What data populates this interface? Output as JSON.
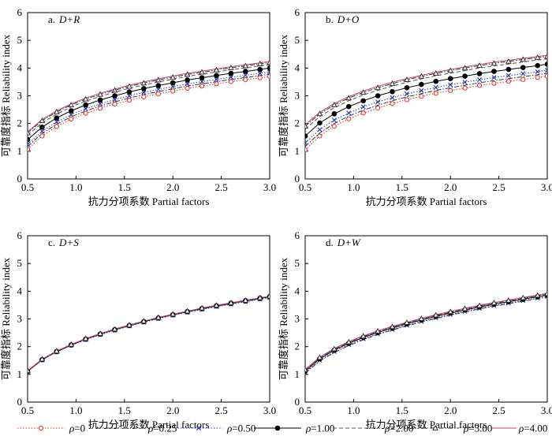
{
  "figure": {
    "legend": [
      {
        "series_id": "r0",
        "rho_symbol": "ρ",
        "label": "=0"
      },
      {
        "series_id": "r025",
        "rho_symbol": "ρ",
        "label": "=0.25"
      },
      {
        "series_id": "r050",
        "rho_symbol": "ρ",
        "label": "=0.50"
      },
      {
        "series_id": "r100",
        "rho_symbol": "ρ",
        "label": "=1.00"
      },
      {
        "series_id": "r200",
        "rho_symbol": "ρ",
        "label": "=2.00"
      },
      {
        "series_id": "r300",
        "rho_symbol": "ρ",
        "label": "=3.00"
      },
      {
        "series_id": "r400",
        "rho_symbol": "ρ",
        "label": "=4.00"
      }
    ],
    "series_styles": {
      "r0": {
        "color": "#e0302a",
        "marker": "circle-open",
        "dash": "dot"
      },
      "r025": {
        "color": "#333333",
        "marker": "none",
        "dash": "dashdot"
      },
      "r050": {
        "color": "#2a3aa8",
        "marker": "x",
        "dash": "dot"
      },
      "r100": {
        "color": "#000000",
        "marker": "circle-filled",
        "dash": "solid"
      },
      "r200": {
        "color": "#555555",
        "marker": "none",
        "dash": "dash"
      },
      "r300": {
        "color": "#333333",
        "marker": "triangle-open",
        "dash": "dashdot"
      },
      "r400": {
        "color": "#c0407a",
        "marker": "none",
        "dash": "solid"
      }
    }
  },
  "chart_data": [
    {
      "type": "line",
      "panel_letter": "a.",
      "panel_case": "D+R",
      "xlabel": "抗力分项系数 Partial factors",
      "ylabel": "可靠度指标 Reliability index",
      "xlim": [
        0.5,
        3.0
      ],
      "ylim": [
        0,
        6
      ],
      "xticks": [
        0.5,
        1.0,
        1.5,
        2.0,
        2.5,
        3.0
      ],
      "xtick_labels": [
        "0.5",
        "1.0",
        "1.5",
        "2.0",
        "2.5",
        "3.0"
      ],
      "yticks": [
        0,
        1,
        2,
        3,
        4,
        5,
        6
      ],
      "ytick_labels": [
        "0",
        "1",
        "2",
        "3",
        "4",
        "5",
        "6"
      ],
      "x": [
        0.5,
        0.65,
        0.8,
        0.95,
        1.1,
        1.25,
        1.4,
        1.55,
        1.7,
        1.85,
        2.0,
        2.15,
        2.3,
        2.45,
        2.6,
        2.75,
        2.9,
        3.0
      ],
      "series": [
        {
          "id": "r0",
          "name": "ρ=0",
          "values": [
            1.07,
            1.55,
            1.89,
            2.16,
            2.37,
            2.55,
            2.7,
            2.84,
            2.96,
            3.07,
            3.17,
            3.27,
            3.35,
            3.43,
            3.51,
            3.58,
            3.65,
            3.7
          ]
        },
        {
          "id": "r025",
          "name": "ρ=0.25",
          "values": [
            1.17,
            1.64,
            1.98,
            2.24,
            2.45,
            2.63,
            2.78,
            2.92,
            3.04,
            3.15,
            3.25,
            3.35,
            3.43,
            3.51,
            3.59,
            3.66,
            3.73,
            3.78
          ]
        },
        {
          "id": "r050",
          "name": "ρ=0.50",
          "values": [
            1.25,
            1.72,
            2.06,
            2.32,
            2.53,
            2.71,
            2.86,
            3.0,
            3.12,
            3.23,
            3.33,
            3.43,
            3.51,
            3.59,
            3.67,
            3.74,
            3.81,
            3.86
          ]
        },
        {
          "id": "r100",
          "name": "ρ=1.00",
          "values": [
            1.42,
            1.87,
            2.2,
            2.46,
            2.67,
            2.85,
            3.0,
            3.14,
            3.26,
            3.37,
            3.47,
            3.57,
            3.65,
            3.73,
            3.81,
            3.88,
            3.95,
            4.0
          ]
        },
        {
          "id": "r200",
          "name": "ρ=2.00",
          "values": [
            1.58,
            2.02,
            2.34,
            2.6,
            2.81,
            2.98,
            3.13,
            3.27,
            3.39,
            3.5,
            3.6,
            3.7,
            3.78,
            3.86,
            3.94,
            4.01,
            4.08,
            4.12
          ]
        },
        {
          "id": "r300",
          "name": "ρ=3.00",
          "values": [
            1.66,
            2.1,
            2.42,
            2.67,
            2.88,
            3.05,
            3.2,
            3.34,
            3.46,
            3.57,
            3.67,
            3.77,
            3.85,
            3.93,
            4.01,
            4.08,
            4.15,
            4.2
          ]
        },
        {
          "id": "r400",
          "name": "ρ=4.00",
          "values": [
            1.7,
            2.14,
            2.46,
            2.71,
            2.92,
            3.09,
            3.24,
            3.38,
            3.5,
            3.61,
            3.71,
            3.81,
            3.89,
            3.97,
            4.05,
            4.12,
            4.19,
            4.24
          ]
        }
      ]
    },
    {
      "type": "line",
      "panel_letter": "b.",
      "panel_case": "D+O",
      "xlabel": "抗力分项系数 Partial factors",
      "ylabel": "可靠度指标 Reliability index",
      "xlim": [
        0.5,
        3.0
      ],
      "ylim": [
        0,
        6
      ],
      "xticks": [
        0.5,
        1.0,
        1.5,
        2.0,
        2.5,
        3.0
      ],
      "xtick_labels": [
        "0.5",
        "1.0",
        "1.5",
        "2.0",
        "2.5",
        "3.0"
      ],
      "yticks": [
        0,
        1,
        2,
        3,
        4,
        5,
        6
      ],
      "ytick_labels": [
        "0",
        "1",
        "2",
        "3",
        "4",
        "5",
        "6"
      ],
      "x": [
        0.5,
        0.65,
        0.8,
        0.95,
        1.1,
        1.25,
        1.4,
        1.55,
        1.7,
        1.85,
        2.0,
        2.15,
        2.3,
        2.45,
        2.6,
        2.75,
        2.9,
        3.0
      ],
      "series": [
        {
          "id": "r0",
          "name": "ρ=0",
          "values": [
            1.05,
            1.55,
            1.9,
            2.17,
            2.38,
            2.56,
            2.72,
            2.86,
            2.98,
            3.09,
            3.19,
            3.28,
            3.37,
            3.45,
            3.52,
            3.59,
            3.66,
            3.71
          ]
        },
        {
          "id": "r025",
          "name": "ρ=0.25",
          "values": [
            1.17,
            1.66,
            2.0,
            2.27,
            2.48,
            2.66,
            2.82,
            2.96,
            3.08,
            3.19,
            3.29,
            3.38,
            3.47,
            3.55,
            3.62,
            3.69,
            3.76,
            3.81
          ]
        },
        {
          "id": "r050",
          "name": "ρ=0.50",
          "values": [
            1.3,
            1.78,
            2.12,
            2.38,
            2.6,
            2.78,
            2.93,
            3.07,
            3.19,
            3.3,
            3.4,
            3.49,
            3.58,
            3.66,
            3.73,
            3.8,
            3.87,
            3.92
          ]
        },
        {
          "id": "r100",
          "name": "ρ=1.00",
          "values": [
            1.55,
            2.02,
            2.35,
            2.61,
            2.82,
            3.0,
            3.15,
            3.29,
            3.41,
            3.52,
            3.62,
            3.71,
            3.8,
            3.88,
            3.95,
            4.02,
            4.09,
            4.14
          ]
        },
        {
          "id": "r200",
          "name": "ρ=2.00",
          "values": [
            1.8,
            2.25,
            2.57,
            2.82,
            3.03,
            3.2,
            3.35,
            3.49,
            3.61,
            3.72,
            3.82,
            3.91,
            4.0,
            4.08,
            4.15,
            4.22,
            4.29,
            4.33
          ]
        },
        {
          "id": "r300",
          "name": "ρ=3.00",
          "values": [
            1.9,
            2.35,
            2.67,
            2.92,
            3.12,
            3.29,
            3.44,
            3.58,
            3.7,
            3.81,
            3.91,
            4.0,
            4.09,
            4.17,
            4.24,
            4.31,
            4.38,
            4.42
          ]
        },
        {
          "id": "r400",
          "name": "ρ=4.00",
          "values": [
            1.96,
            2.4,
            2.72,
            2.97,
            3.17,
            3.34,
            3.49,
            3.62,
            3.74,
            3.85,
            3.95,
            4.04,
            4.13,
            4.21,
            4.28,
            4.35,
            4.42,
            4.46
          ]
        }
      ]
    },
    {
      "type": "line",
      "panel_letter": "c.",
      "panel_case": "D+S",
      "xlabel": "抗力分项系数 Partial factors",
      "ylabel": "可靠度指标 Reliability index",
      "xlim": [
        0.5,
        3.0
      ],
      "ylim": [
        0,
        6
      ],
      "xticks": [
        0.5,
        1.0,
        1.5,
        2.0,
        2.5,
        3.0
      ],
      "xtick_labels": [
        "0.5",
        "1.0",
        "1.5",
        "2.0",
        "2.5",
        "3.0"
      ],
      "yticks": [
        0,
        1,
        2,
        3,
        4,
        5,
        6
      ],
      "ytick_labels": [
        "0",
        "1",
        "2",
        "3",
        "4",
        "5",
        "6"
      ],
      "x": [
        0.5,
        0.65,
        0.8,
        0.95,
        1.1,
        1.25,
        1.4,
        1.55,
        1.7,
        1.85,
        2.0,
        2.15,
        2.3,
        2.45,
        2.6,
        2.75,
        2.9,
        3.0
      ],
      "series": [
        {
          "id": "r0",
          "name": "ρ=0",
          "values": [
            1.12,
            1.54,
            1.83,
            2.07,
            2.28,
            2.46,
            2.62,
            2.77,
            2.91,
            3.04,
            3.16,
            3.27,
            3.38,
            3.48,
            3.58,
            3.67,
            3.76,
            3.81
          ]
        },
        {
          "id": "r025",
          "name": "ρ=0.25",
          "values": [
            1.11,
            1.53,
            1.82,
            2.06,
            2.27,
            2.45,
            2.61,
            2.76,
            2.9,
            3.03,
            3.15,
            3.26,
            3.36,
            3.46,
            3.55,
            3.64,
            3.73,
            3.79
          ]
        },
        {
          "id": "r050",
          "name": "ρ=0.50",
          "values": [
            1.1,
            1.52,
            1.81,
            2.05,
            2.25,
            2.43,
            2.59,
            2.74,
            2.88,
            3.01,
            3.13,
            3.24,
            3.34,
            3.44,
            3.53,
            3.62,
            3.71,
            3.77
          ]
        },
        {
          "id": "r100",
          "name": "ρ=1.00",
          "values": [
            1.11,
            1.53,
            1.82,
            2.06,
            2.27,
            2.45,
            2.61,
            2.76,
            2.9,
            3.03,
            3.15,
            3.26,
            3.37,
            3.47,
            3.56,
            3.65,
            3.74,
            3.8
          ]
        },
        {
          "id": "r200",
          "name": "ρ=2.00",
          "values": [
            1.12,
            1.54,
            1.83,
            2.07,
            2.28,
            2.46,
            2.62,
            2.77,
            2.91,
            3.04,
            3.16,
            3.27,
            3.38,
            3.48,
            3.57,
            3.66,
            3.75,
            3.81
          ]
        },
        {
          "id": "r300",
          "name": "ρ=3.00",
          "values": [
            1.13,
            1.55,
            1.84,
            2.08,
            2.29,
            2.47,
            2.63,
            2.78,
            2.92,
            3.05,
            3.17,
            3.28,
            3.39,
            3.49,
            3.58,
            3.67,
            3.76,
            3.82
          ]
        },
        {
          "id": "r400",
          "name": "ρ=4.00",
          "values": [
            1.13,
            1.55,
            1.84,
            2.08,
            2.29,
            2.47,
            2.63,
            2.78,
            2.92,
            3.05,
            3.17,
            3.28,
            3.39,
            3.49,
            3.58,
            3.67,
            3.76,
            3.82
          ]
        }
      ]
    },
    {
      "type": "line",
      "panel_letter": "d.",
      "panel_case": "D+W",
      "xlabel": "抗力分项系数 Partial factors",
      "ylabel": "可靠度指标 Reliability index",
      "xlim": [
        0.5,
        3.0
      ],
      "ylim": [
        0,
        6
      ],
      "xticks": [
        0.5,
        1.0,
        1.5,
        2.0,
        2.5,
        3.0
      ],
      "xtick_labels": [
        "0.5",
        "1.0",
        "1.5",
        "2.0",
        "2.5",
        "3.0"
      ],
      "yticks": [
        0,
        1,
        2,
        3,
        4,
        5,
        6
      ],
      "ytick_labels": [
        "0",
        "1",
        "2",
        "3",
        "4",
        "5",
        "6"
      ],
      "x": [
        0.5,
        0.65,
        0.8,
        0.95,
        1.1,
        1.25,
        1.4,
        1.55,
        1.7,
        1.85,
        2.0,
        2.15,
        2.3,
        2.45,
        2.6,
        2.75,
        2.9,
        3.0
      ],
      "series": [
        {
          "id": "r0",
          "name": "ρ=0",
          "values": [
            1.13,
            1.57,
            1.88,
            2.13,
            2.34,
            2.52,
            2.68,
            2.83,
            2.97,
            3.1,
            3.22,
            3.33,
            3.43,
            3.53,
            3.62,
            3.71,
            3.8,
            3.86
          ]
        },
        {
          "id": "r025",
          "name": "ρ=0.25",
          "values": [
            1.05,
            1.48,
            1.79,
            2.04,
            2.25,
            2.44,
            2.6,
            2.75,
            2.89,
            3.02,
            3.14,
            3.25,
            3.36,
            3.46,
            3.55,
            3.64,
            3.73,
            3.79
          ]
        },
        {
          "id": "r050",
          "name": "ρ=0.50",
          "values": [
            1.07,
            1.51,
            1.82,
            2.07,
            2.28,
            2.46,
            2.62,
            2.77,
            2.91,
            3.04,
            3.16,
            3.27,
            3.38,
            3.48,
            3.57,
            3.66,
            3.75,
            3.81
          ]
        },
        {
          "id": "r100",
          "name": "ρ=1.00",
          "values": [
            1.12,
            1.56,
            1.87,
            2.12,
            2.33,
            2.51,
            2.67,
            2.82,
            2.96,
            3.09,
            3.21,
            3.32,
            3.43,
            3.53,
            3.62,
            3.71,
            3.8,
            3.86
          ]
        },
        {
          "id": "r200",
          "name": "ρ=2.00",
          "values": [
            1.15,
            1.59,
            1.9,
            2.15,
            2.36,
            2.54,
            2.7,
            2.85,
            2.99,
            3.12,
            3.24,
            3.35,
            3.46,
            3.56,
            3.65,
            3.74,
            3.83,
            3.89
          ]
        },
        {
          "id": "r300",
          "name": "ρ=3.00",
          "values": [
            1.17,
            1.61,
            1.92,
            2.17,
            2.38,
            2.56,
            2.72,
            2.87,
            3.01,
            3.14,
            3.26,
            3.37,
            3.48,
            3.58,
            3.67,
            3.76,
            3.85,
            3.91
          ]
        },
        {
          "id": "r400",
          "name": "ρ=4.00",
          "values": [
            1.18,
            1.62,
            1.93,
            2.18,
            2.39,
            2.57,
            2.73,
            2.88,
            3.02,
            3.15,
            3.27,
            3.38,
            3.49,
            3.59,
            3.68,
            3.77,
            3.86,
            3.92
          ]
        }
      ]
    }
  ]
}
